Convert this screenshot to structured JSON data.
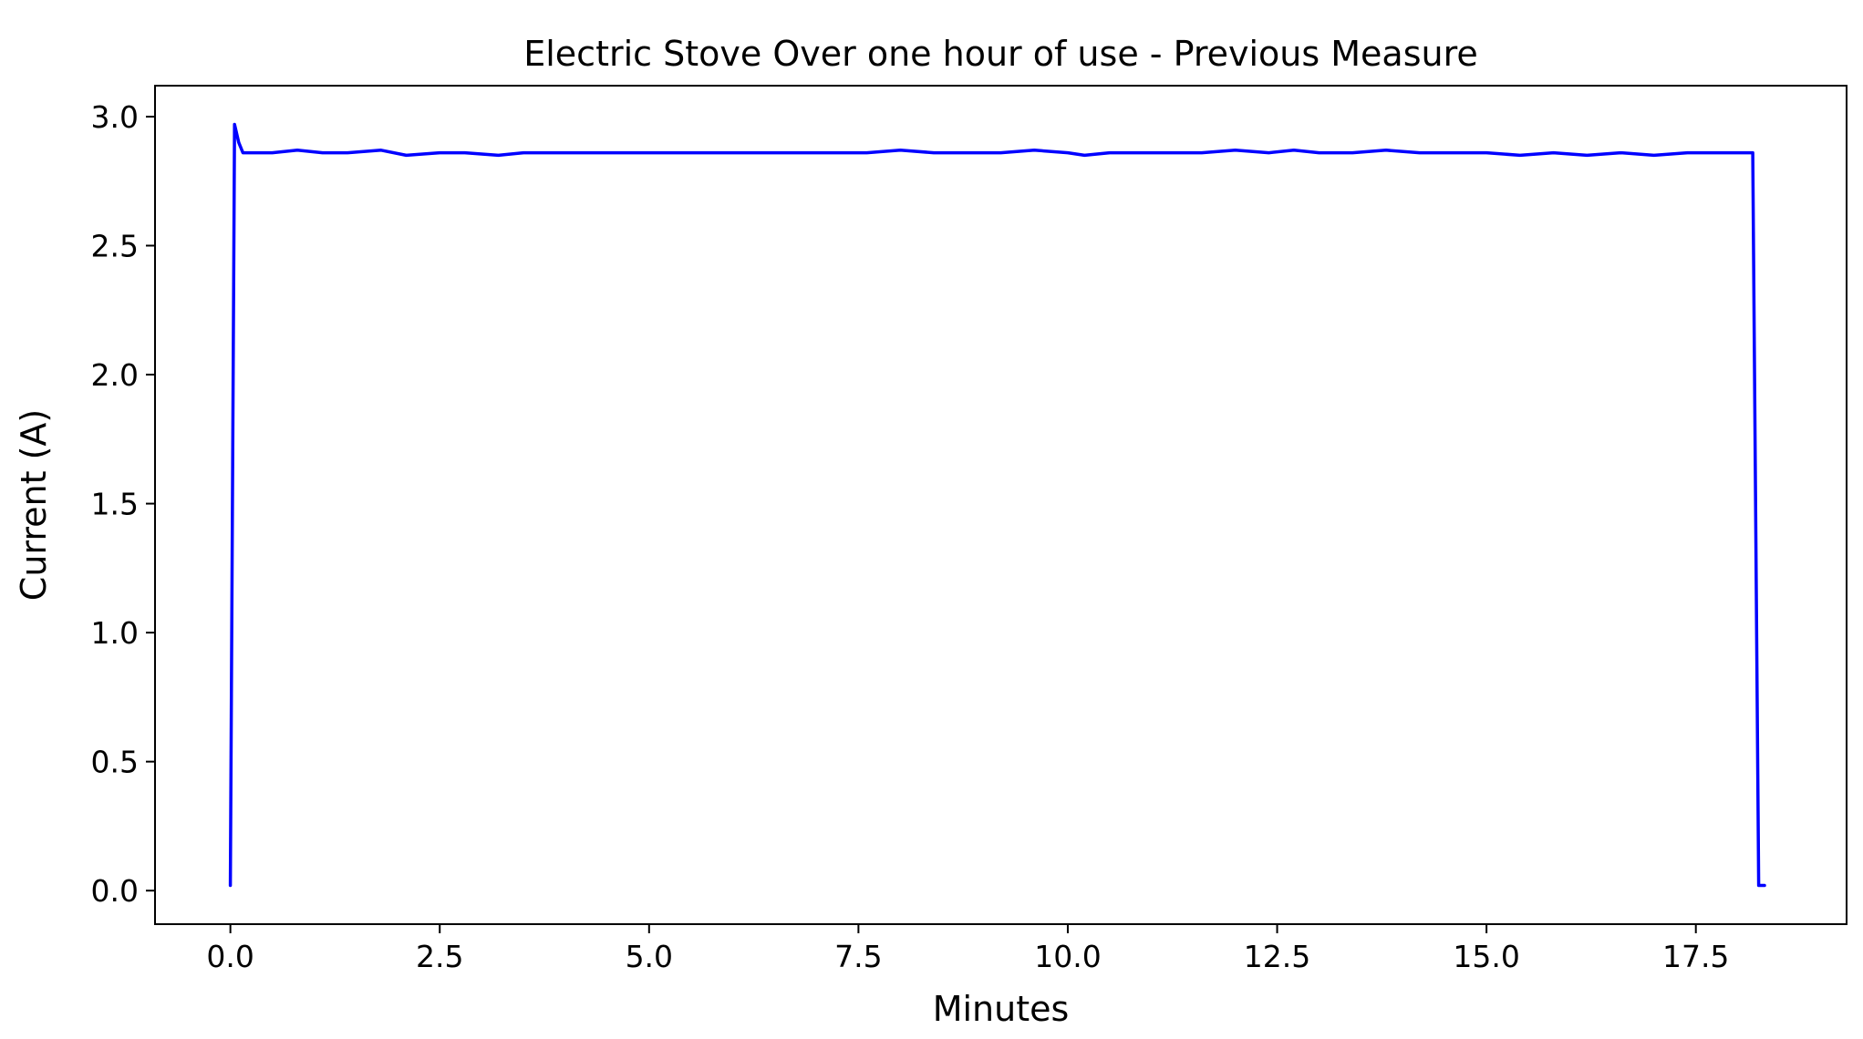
{
  "chart_data": {
    "type": "line",
    "title": "Electric Stove Over one hour of use -  Previous Measure",
    "xlabel": "Minutes",
    "ylabel": "Current (A)",
    "xlim": [
      -0.9,
      19.3
    ],
    "ylim": [
      -0.13,
      3.12
    ],
    "x_ticks": [
      0.0,
      2.5,
      5.0,
      7.5,
      10.0,
      12.5,
      15.0,
      17.5
    ],
    "x_tick_labels": [
      "0.0",
      "2.5",
      "5.0",
      "7.5",
      "10.0",
      "12.5",
      "15.0",
      "17.5"
    ],
    "y_ticks": [
      0.0,
      0.5,
      1.0,
      1.5,
      2.0,
      2.5,
      3.0
    ],
    "y_tick_labels": [
      "0.0",
      "0.5",
      "1.0",
      "1.5",
      "2.0",
      "2.5",
      "3.0"
    ],
    "grid": false,
    "series": [
      {
        "color": "#0000ff",
        "x": [
          0.0,
          0.05,
          0.1,
          0.15,
          0.2,
          0.3,
          0.5,
          0.8,
          1.1,
          1.4,
          1.8,
          2.1,
          2.5,
          2.8,
          3.2,
          3.5,
          3.9,
          4.2,
          4.6,
          5.0,
          5.3,
          5.7,
          6.0,
          6.4,
          6.8,
          7.2,
          7.6,
          8.0,
          8.4,
          8.8,
          9.2,
          9.6,
          10.0,
          10.2,
          10.5,
          10.9,
          11.3,
          11.6,
          12.0,
          12.4,
          12.7,
          13.0,
          13.4,
          13.8,
          14.2,
          14.6,
          15.0,
          15.4,
          15.8,
          16.2,
          16.6,
          17.0,
          17.4,
          17.8,
          18.1,
          18.18,
          18.25,
          18.32
        ],
        "y": [
          0.02,
          2.97,
          2.9,
          2.86,
          2.86,
          2.86,
          2.86,
          2.87,
          2.86,
          2.86,
          2.87,
          2.85,
          2.86,
          2.86,
          2.85,
          2.86,
          2.86,
          2.86,
          2.86,
          2.86,
          2.86,
          2.86,
          2.86,
          2.86,
          2.86,
          2.86,
          2.86,
          2.87,
          2.86,
          2.86,
          2.86,
          2.87,
          2.86,
          2.85,
          2.86,
          2.86,
          2.86,
          2.86,
          2.87,
          2.86,
          2.87,
          2.86,
          2.86,
          2.87,
          2.86,
          2.86,
          2.86,
          2.85,
          2.86,
          2.85,
          2.86,
          2.85,
          2.86,
          2.86,
          2.86,
          2.86,
          0.02,
          0.02
        ]
      }
    ]
  }
}
